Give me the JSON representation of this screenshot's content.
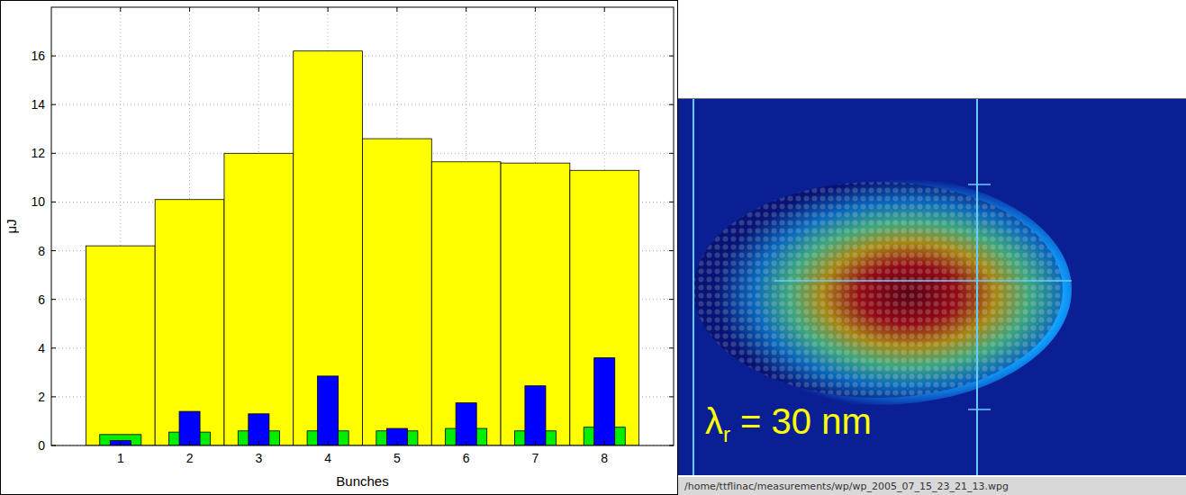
{
  "chart_data": {
    "type": "bar",
    "x_label": "Bunches",
    "y_label": "μJ",
    "x": [
      1,
      2,
      3,
      4,
      5,
      6,
      7,
      8
    ],
    "series": [
      {
        "color": "#ffff00",
        "values": [
          8.2,
          10.1,
          12.0,
          16.2,
          12.6,
          11.65,
          11.6,
          11.3
        ]
      },
      {
        "color": "#00ee00",
        "values": [
          0.45,
          0.55,
          0.6,
          0.6,
          0.6,
          0.7,
          0.6,
          0.75
        ]
      },
      {
        "color": "#0000ff",
        "values": [
          0.2,
          1.4,
          1.3,
          2.85,
          0.7,
          1.75,
          2.45,
          3.6
        ]
      }
    ],
    "xlim": [
      0,
      9
    ],
    "xticks": [
      1,
      2,
      3,
      4,
      5,
      6,
      7,
      8
    ],
    "ylim": [
      0,
      18
    ],
    "yticks": [
      0,
      2,
      4,
      6,
      8,
      10,
      12,
      14,
      16
    ],
    "grid": true
  },
  "image_panel": {
    "annotation": {
      "symbol": "λ",
      "subscript": "r",
      "text": " = 30 nm"
    },
    "caption": "/home/ttflinac/measurements/wp/wp_2005_07_15_23_21_13.wpg"
  }
}
